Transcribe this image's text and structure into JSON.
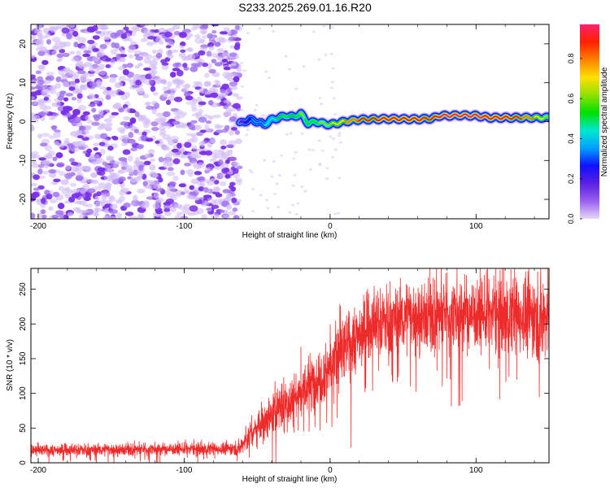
{
  "title": "S233.2025.269.01.16.R20",
  "colors": {
    "axis": "#000000",
    "snr_line": "#ee2b2b",
    "background": "#ffffff"
  },
  "chart_data": [
    {
      "type": "heatmap",
      "name": "spectrogram",
      "xlabel": "Height of straight line (km)",
      "ylabel": "Frequency (Hz)",
      "xlim": [
        -205,
        150
      ],
      "ylim": [
        -25,
        25
      ],
      "xticks": [
        -200,
        -100,
        0,
        100
      ],
      "yticks": [
        -20,
        -10,
        0,
        10,
        20
      ],
      "colorbar": {
        "label": "Normalized spectral amplitude",
        "range": [
          0,
          0.97
        ],
        "ticks": [
          0.0,
          0.2,
          0.4,
          0.6,
          0.8
        ],
        "colormap": [
          "#e6d8f8",
          "#9a60f0",
          "#5a20e0",
          "#1010ff",
          "#00a0ff",
          "#00e8d0",
          "#00e000",
          "#90e000",
          "#ffe000",
          "#ff8000",
          "#ff2000",
          "#ff2070"
        ]
      },
      "noise_region_x": [
        -205,
        -62
      ],
      "carrier_track": {
        "x": [
          -62,
          -55,
          -50,
          -45,
          -40,
          -35,
          -30,
          -25,
          -20,
          -15,
          -10,
          -5,
          0,
          10,
          20,
          40,
          60,
          70,
          75,
          80,
          90,
          100,
          110,
          120,
          130,
          140,
          150
        ],
        "freq": [
          -0.5,
          0.5,
          0,
          -0.8,
          0.5,
          1.0,
          1.5,
          1.2,
          2.0,
          -0.5,
          0,
          -0.5,
          -0.8,
          0,
          0.5,
          0.7,
          0.6,
          0.8,
          1.5,
          1.5,
          1.6,
          1.5,
          1.0,
          1.0,
          1.0,
          1.0,
          1.0
        ],
        "amplitude": [
          0.15,
          0.3,
          0.35,
          0.4,
          0.45,
          0.5,
          0.55,
          0.5,
          0.6,
          0.55,
          0.55,
          0.6,
          0.65,
          0.75,
          0.85,
          0.9,
          0.9,
          0.85,
          0.92,
          0.95,
          0.95,
          0.95,
          0.9,
          0.9,
          0.85,
          0.75,
          0.6
        ]
      }
    },
    {
      "type": "line",
      "name": "snr",
      "xlabel": "Height of straight line (km)",
      "ylabel": "SNR (10 * v/v)",
      "xlim": [
        -205,
        150
      ],
      "ylim": [
        0,
        280
      ],
      "xticks": [
        -200,
        -100,
        0,
        100
      ],
      "yticks": [
        0,
        50,
        100,
        150,
        200,
        250
      ],
      "envelope": {
        "x": [
          -205,
          -150,
          -100,
          -70,
          -62,
          -55,
          -45,
          -35,
          -20,
          -10,
          0,
          10,
          20,
          30,
          40,
          50,
          60,
          80,
          100,
          120,
          150
        ],
        "mean": [
          18,
          19,
          20,
          20,
          22,
          40,
          60,
          80,
          100,
          120,
          140,
          165,
          185,
          200,
          205,
          210,
          212,
          215,
          215,
          215,
          210
        ],
        "spread": [
          8,
          9,
          9,
          9,
          10,
          22,
          28,
          35,
          40,
          45,
          50,
          50,
          48,
          48,
          50,
          50,
          52,
          55,
          55,
          58,
          60
        ]
      }
    }
  ]
}
